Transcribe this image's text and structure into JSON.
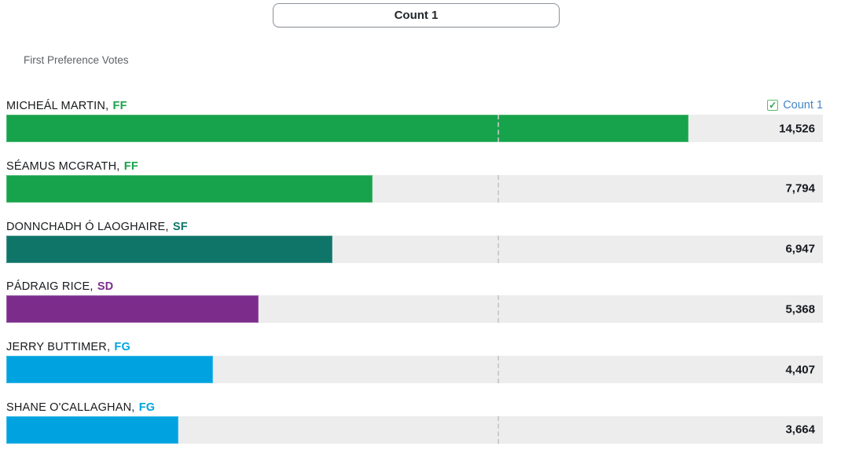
{
  "header": {
    "count_button_label": "Count 1"
  },
  "subtitle": "First Preference Votes",
  "legend": {
    "checkbox_icon": "checked-checkbox-icon",
    "check_glyph": "✓",
    "label": "Count 1",
    "label_color": "#4584c6",
    "check_color": "#2ea044",
    "box_border_color": "#5cbc66"
  },
  "labels": {
    "name_party_separator": ", "
  },
  "party_colors": {
    "FF": "#17a34b",
    "SF": "#0f7569",
    "SD": "#7c2d8c",
    "FG": "#00a3e0"
  },
  "candidates": [
    {
      "name": "MICHEÁL MARTIN",
      "party": "FF",
      "votes": "14,526",
      "votes_value": 14526
    },
    {
      "name": "SÉAMUS MCGRATH",
      "party": "FF",
      "votes": "7,794",
      "votes_value": 7794
    },
    {
      "name": "DONNCHADH Ó LAOGHAIRE",
      "party": "SF",
      "votes": "6,947",
      "votes_value": 6947
    },
    {
      "name": "PÁDRAIG RICE",
      "party": "SD",
      "votes": "5,368",
      "votes_value": 5368
    },
    {
      "name": "JERRY BUTTIMER",
      "party": "FG",
      "votes": "4,407",
      "votes_value": 4407
    },
    {
      "name": "SHANE O'CALLAGHAN",
      "party": "FG",
      "votes": "3,664",
      "votes_value": 3664
    }
  ],
  "chart_data": {
    "type": "bar",
    "orientation": "horizontal",
    "title": "Count 1",
    "subtitle": "First Preference Votes",
    "categories": [
      "MICHEÁL MARTIN, FF",
      "SÉAMUS MCGRATH, FF",
      "DONNCHADH Ó LAOGHAIRE, SF",
      "PÁDRAIG RICE, SD",
      "JERRY BUTTIMER, FG",
      "SHANE O'CALLAGHAN, FG"
    ],
    "values": [
      14526,
      7794,
      6947,
      5368,
      4407,
      3664
    ],
    "data_labels": [
      "14,526",
      "7,794",
      "6,947",
      "5,368",
      "4,407",
      "3,664"
    ],
    "bar_colors": [
      "#17a34b",
      "#17a34b",
      "#0f7569",
      "#7c2d8c",
      "#00a3e0",
      "#00a3e0"
    ],
    "track_color": "#ededee",
    "xlim": [
      0,
      17380
    ],
    "reference_line": {
      "style": "dashed",
      "value_estimate": 10450
    },
    "grid": false,
    "legend": {
      "position": "top-right",
      "entries": [
        "Count 1"
      ]
    }
  }
}
